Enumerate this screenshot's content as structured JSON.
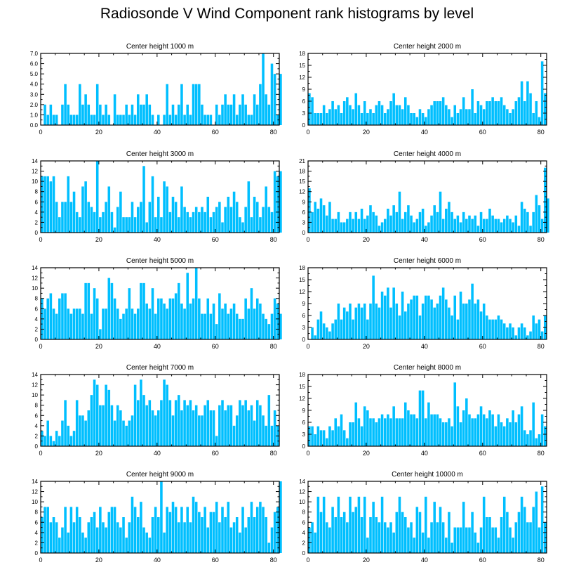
{
  "title": "Radiosonde V Wind Component rank histograms by level",
  "bar_color": "#00bfff",
  "chart_data": [
    {
      "type": "bar",
      "title": "Center height 1000 m",
      "xlabel": "",
      "ylabel": "",
      "xlim": [
        0,
        82
      ],
      "x_ticks": [
        0,
        20,
        40,
        60,
        80
      ],
      "ylim": [
        0,
        7
      ],
      "y_ticks": [
        "0.0",
        "1.0",
        "2.0",
        "3.0",
        "4.0",
        "5.0",
        "6.0",
        "7.0"
      ],
      "values": [
        0,
        2,
        1,
        2,
        1,
        1,
        0,
        2,
        4,
        2,
        1,
        1,
        1,
        4,
        2,
        3,
        2,
        1,
        1,
        4,
        2,
        1,
        2,
        1,
        0,
        3,
        1,
        1,
        1,
        2,
        1,
        2,
        1,
        3,
        2,
        2,
        3,
        2,
        1,
        0,
        1,
        0,
        1,
        4,
        1,
        2,
        1,
        2,
        4,
        1,
        2,
        1,
        4,
        4,
        4,
        2,
        1,
        1,
        1,
        0,
        2,
        1,
        2,
        3,
        2,
        2,
        3,
        1,
        2,
        3,
        2,
        1,
        1,
        3,
        2,
        4,
        7,
        3,
        2,
        6,
        5,
        1,
        5
      ]
    },
    {
      "type": "bar",
      "title": "Center height 2000 m",
      "xlabel": "",
      "ylabel": "",
      "xlim": [
        0,
        82
      ],
      "x_ticks": [
        0,
        20,
        40,
        60,
        80
      ],
      "ylim": [
        0,
        18
      ],
      "y_ticks": [
        "0",
        "3",
        "6",
        "9",
        "12",
        "15",
        "18"
      ],
      "values": [
        8,
        7,
        3,
        3,
        3,
        5,
        3,
        4,
        6,
        4,
        5,
        3,
        6,
        7,
        5,
        4,
        8,
        5,
        3,
        6,
        3,
        4,
        3,
        5,
        6,
        5,
        3,
        4,
        6,
        8,
        5,
        5,
        4,
        7,
        5,
        3,
        3,
        2,
        4,
        3,
        2,
        4,
        5,
        6,
        6,
        6,
        7,
        5,
        4,
        2,
        5,
        3,
        4,
        7,
        4,
        4,
        9,
        3,
        6,
        5,
        4,
        6,
        6,
        7,
        6,
        6,
        7,
        5,
        4,
        3,
        4,
        6,
        7,
        11,
        6,
        11,
        8,
        3,
        6,
        2,
        16,
        8
      ]
    },
    {
      "type": "bar",
      "title": "Center height 3000 m",
      "xlabel": "",
      "ylabel": "",
      "xlim": [
        0,
        82
      ],
      "x_ticks": [
        0,
        20,
        40,
        60,
        80
      ],
      "ylim": [
        0,
        14
      ],
      "y_ticks": [
        "0",
        "2",
        "4",
        "6",
        "8",
        "10",
        "12",
        "14"
      ],
      "values": [
        11,
        11,
        11,
        10,
        11,
        6,
        3,
        6,
        6,
        11,
        6,
        8,
        4,
        3,
        9,
        10,
        6,
        5,
        4,
        14,
        3,
        4,
        6,
        9,
        4,
        1,
        5,
        8,
        3,
        3,
        3,
        6,
        3,
        5,
        6,
        13,
        2,
        6,
        11,
        3,
        7,
        3,
        10,
        9,
        4,
        7,
        6,
        3,
        9,
        5,
        4,
        3,
        4,
        5,
        4,
        5,
        4,
        7,
        3,
        4,
        5,
        6,
        2,
        5,
        7,
        5,
        8,
        6,
        3,
        2,
        5,
        10,
        3,
        7,
        6,
        3,
        5,
        9,
        5,
        4,
        12,
        11,
        12
      ]
    },
    {
      "type": "bar",
      "title": "Center height 4000 m",
      "xlabel": "",
      "ylabel": "",
      "xlim": [
        0,
        82
      ],
      "x_ticks": [
        0,
        20,
        40,
        60,
        80
      ],
      "ylim": [
        0,
        21
      ],
      "y_ticks": [
        "0",
        "3",
        "6",
        "9",
        "12",
        "15",
        "18",
        "21"
      ],
      "values": [
        13,
        6,
        9,
        7,
        10,
        8,
        5,
        9,
        4,
        4,
        6,
        3,
        3,
        4,
        6,
        4,
        6,
        4,
        7,
        4,
        5,
        8,
        6,
        5,
        2,
        3,
        4,
        7,
        5,
        8,
        6,
        12,
        4,
        6,
        8,
        5,
        3,
        4,
        6,
        7,
        2,
        3,
        5,
        8,
        6,
        12,
        4,
        7,
        9,
        6,
        4,
        5,
        3,
        6,
        4,
        5,
        4,
        5,
        2,
        6,
        4,
        4,
        7,
        5,
        4,
        4,
        3,
        4,
        5,
        4,
        3,
        5,
        2,
        9,
        7,
        6,
        2,
        6,
        11,
        8,
        4,
        19,
        10
      ]
    },
    {
      "type": "bar",
      "title": "Center height 5000 m",
      "xlabel": "",
      "ylabel": "",
      "xlim": [
        0,
        82
      ],
      "x_ticks": [
        0,
        20,
        40,
        60,
        80
      ],
      "ylim": [
        0,
        14
      ],
      "y_ticks": [
        "0",
        "2",
        "4",
        "6",
        "8",
        "10",
        "12",
        "14"
      ],
      "values": [
        8,
        6,
        8,
        9,
        6,
        5,
        8,
        9,
        9,
        6,
        5,
        6,
        6,
        6,
        5,
        11,
        11,
        5,
        10,
        8,
        2,
        6,
        6,
        12,
        11,
        8,
        6,
        4,
        5,
        6,
        10,
        6,
        5,
        6,
        11,
        11,
        7,
        6,
        10,
        5,
        8,
        8,
        7,
        6,
        8,
        8,
        9,
        11,
        7,
        6,
        13,
        7,
        8,
        14,
        8,
        5,
        5,
        8,
        5,
        7,
        3,
        9,
        6,
        7,
        5,
        6,
        7,
        5,
        4,
        4,
        8,
        6,
        10,
        6,
        8,
        7,
        5,
        4,
        3,
        5,
        8,
        7,
        5
      ]
    },
    {
      "type": "bar",
      "title": "Center height 6000 m",
      "xlabel": "",
      "ylabel": "",
      "xlim": [
        0,
        82
      ],
      "x_ticks": [
        0,
        20,
        40,
        60,
        80
      ],
      "ylim": [
        0,
        18
      ],
      "y_ticks": [
        "0",
        "3",
        "6",
        "9",
        "12",
        "15",
        "18"
      ],
      "values": [
        0,
        3,
        1,
        5,
        7,
        4,
        3,
        2,
        4,
        5,
        9,
        5,
        8,
        7,
        9,
        5,
        8,
        9,
        8,
        9,
        5,
        9,
        16,
        9,
        8,
        12,
        11,
        13,
        8,
        13,
        9,
        6,
        12,
        7,
        9,
        10,
        11,
        11,
        6,
        9,
        11,
        11,
        10,
        8,
        9,
        11,
        13,
        10,
        8,
        6,
        11,
        5,
        12,
        9,
        9,
        10,
        14,
        9,
        10,
        7,
        9,
        6,
        5,
        5,
        5,
        6,
        5,
        4,
        3,
        4,
        3,
        1,
        3,
        4,
        3,
        1,
        2,
        6,
        4,
        5,
        2,
        6
      ]
    },
    {
      "type": "bar",
      "title": "Center height 7000 m",
      "xlabel": "",
      "ylabel": "",
      "xlim": [
        0,
        82
      ],
      "x_ticks": [
        0,
        20,
        40,
        60,
        80
      ],
      "ylim": [
        0,
        14
      ],
      "y_ticks": [
        "0",
        "2",
        "4",
        "6",
        "8",
        "10",
        "12",
        "14"
      ],
      "values": [
        3,
        2,
        5,
        2,
        1,
        3,
        2,
        5,
        9,
        4,
        2,
        3,
        9,
        6,
        6,
        5,
        7,
        10,
        13,
        12,
        8,
        8,
        12,
        11,
        8,
        5,
        8,
        7,
        5,
        4,
        5,
        6,
        12,
        9,
        13,
        10,
        8,
        9,
        7,
        6,
        7,
        9,
        13,
        12,
        9,
        6,
        9,
        10,
        7,
        9,
        8,
        9,
        7,
        8,
        6,
        6,
        8,
        9,
        7,
        7,
        2,
        8,
        9,
        7,
        8,
        8,
        4,
        6,
        9,
        8,
        9,
        7,
        8,
        5,
        9,
        8,
        6,
        4,
        10,
        4,
        7,
        4
      ]
    },
    {
      "type": "bar",
      "title": "Center height 8000 m",
      "xlabel": "",
      "ylabel": "",
      "xlim": [
        0,
        82
      ],
      "x_ticks": [
        0,
        20,
        40,
        60,
        80
      ],
      "ylim": [
        0,
        18
      ],
      "y_ticks": [
        "0",
        "3",
        "6",
        "9",
        "12",
        "15",
        "18"
      ],
      "values": [
        5,
        5,
        3,
        5,
        4,
        4,
        2,
        5,
        4,
        7,
        5,
        8,
        4,
        2,
        6,
        6,
        11,
        7,
        5,
        10,
        9,
        7,
        7,
        6,
        7,
        8,
        7,
        8,
        7,
        10,
        7,
        7,
        7,
        11,
        9,
        8,
        8,
        7,
        14,
        14,
        7,
        11,
        8,
        8,
        8,
        7,
        6,
        6,
        7,
        5,
        16,
        10,
        6,
        9,
        12,
        8,
        7,
        7,
        8,
        10,
        8,
        7,
        9,
        8,
        5,
        8,
        6,
        5,
        7,
        6,
        9,
        6,
        8,
        10,
        4,
        3,
        4,
        11,
        2,
        3,
        8,
        5
      ]
    },
    {
      "type": "bar",
      "title": "Center height 9000 m",
      "xlabel": "",
      "ylabel": "",
      "xlim": [
        0,
        82
      ],
      "x_ticks": [
        0,
        20,
        40,
        60,
        80
      ],
      "ylim": [
        0,
        14
      ],
      "y_ticks": [
        "0",
        "2",
        "4",
        "6",
        "8",
        "10",
        "12",
        "14"
      ],
      "values": [
        7,
        9,
        9,
        6,
        7,
        6,
        3,
        5,
        9,
        4,
        9,
        6,
        9,
        7,
        4,
        3,
        6,
        7,
        8,
        5,
        9,
        6,
        5,
        8,
        9,
        9,
        6,
        5,
        7,
        3,
        6,
        11,
        9,
        7,
        10,
        5,
        4,
        3,
        7,
        9,
        7,
        14,
        4,
        9,
        8,
        10,
        9,
        6,
        9,
        6,
        9,
        6,
        11,
        10,
        8,
        7,
        9,
        5,
        8,
        8,
        10,
        6,
        9,
        7,
        10,
        5,
        6,
        7,
        4,
        9,
        5,
        7,
        10,
        7,
        9,
        10,
        9,
        7,
        2,
        5,
        8,
        9,
        14
      ]
    },
    {
      "type": "bar",
      "title": "Center height 10000 m",
      "xlabel": "",
      "ylabel": "",
      "xlim": [
        0,
        82
      ],
      "x_ticks": [
        0,
        20,
        40,
        60,
        80
      ],
      "ylim": [
        0,
        14
      ],
      "y_ticks": [
        "0",
        "2",
        "4",
        "6",
        "8",
        "10",
        "12",
        "14"
      ],
      "values": [
        5,
        6,
        4,
        11,
        8,
        11,
        6,
        5,
        9,
        7,
        11,
        7,
        8,
        6,
        11,
        8,
        9,
        11,
        7,
        11,
        3,
        7,
        10,
        7,
        6,
        11,
        6,
        5,
        6,
        4,
        8,
        11,
        8,
        7,
        5,
        6,
        3,
        9,
        8,
        4,
        11,
        3,
        6,
        10,
        6,
        9,
        6,
        3,
        8,
        2,
        5,
        5,
        5,
        10,
        5,
        5,
        8,
        4,
        2,
        5,
        11,
        7,
        7,
        5,
        5,
        3,
        7,
        11,
        8,
        5,
        3,
        6,
        8,
        11,
        9,
        6,
        6,
        9,
        12,
        5,
        13,
        6
      ]
    }
  ]
}
